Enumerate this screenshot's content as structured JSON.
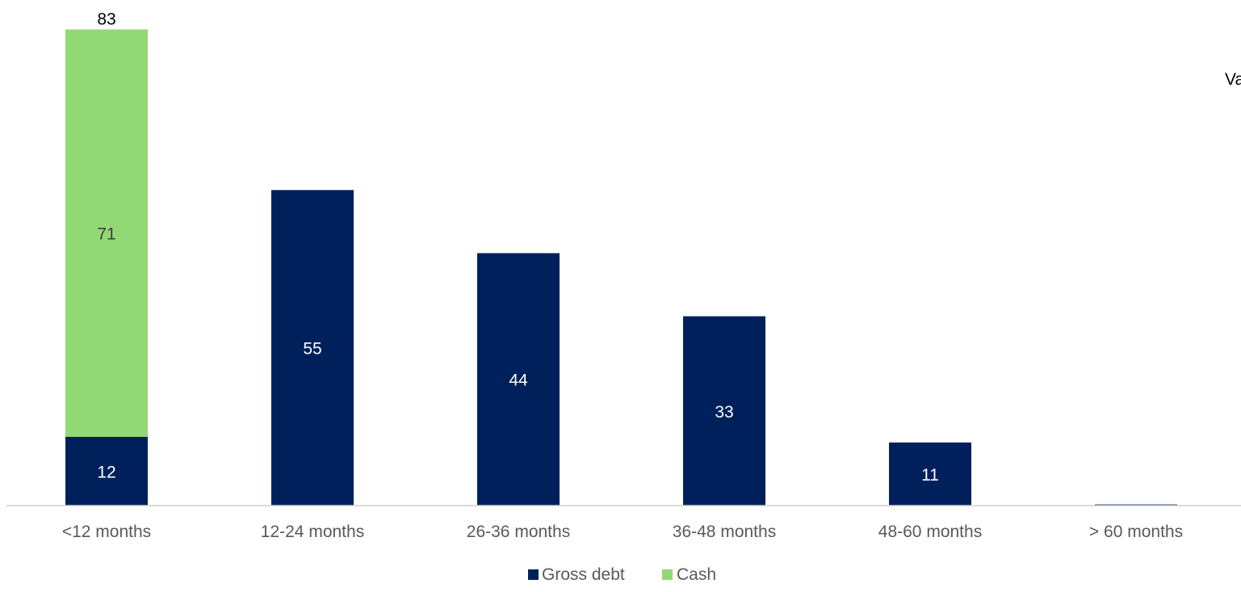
{
  "chart_data": {
    "type": "bar",
    "stacked": true,
    "categories": [
      "<12 months",
      "12-24 months",
      "26-36 months",
      "36-48 months",
      "48-60 months",
      "> 60 months"
    ],
    "series": [
      {
        "name": "Gross debt",
        "color": "#00205B",
        "values": [
          12,
          55,
          44,
          33,
          11,
          0.2
        ],
        "data_labels": [
          "12",
          "55",
          "44",
          "33",
          "11",
          ""
        ]
      },
      {
        "name": "Cash",
        "color": "#92D975",
        "values": [
          71,
          0,
          0,
          0,
          0,
          0
        ],
        "data_labels": [
          "71",
          "",
          "",
          "",
          "",
          ""
        ]
      }
    ],
    "total_labels": [
      "83",
      "",
      "",
      "",
      "",
      ""
    ],
    "ylim": [
      0,
      87
    ],
    "y_axis_visible": false,
    "grid": false,
    "legend": "bottom",
    "clipped_text": "Va"
  },
  "colors": {
    "label_on_dark": "#FFFFFF",
    "label_on_light": "#404040",
    "axis_text": "#595959",
    "baseline": "#D0D0D0"
  }
}
